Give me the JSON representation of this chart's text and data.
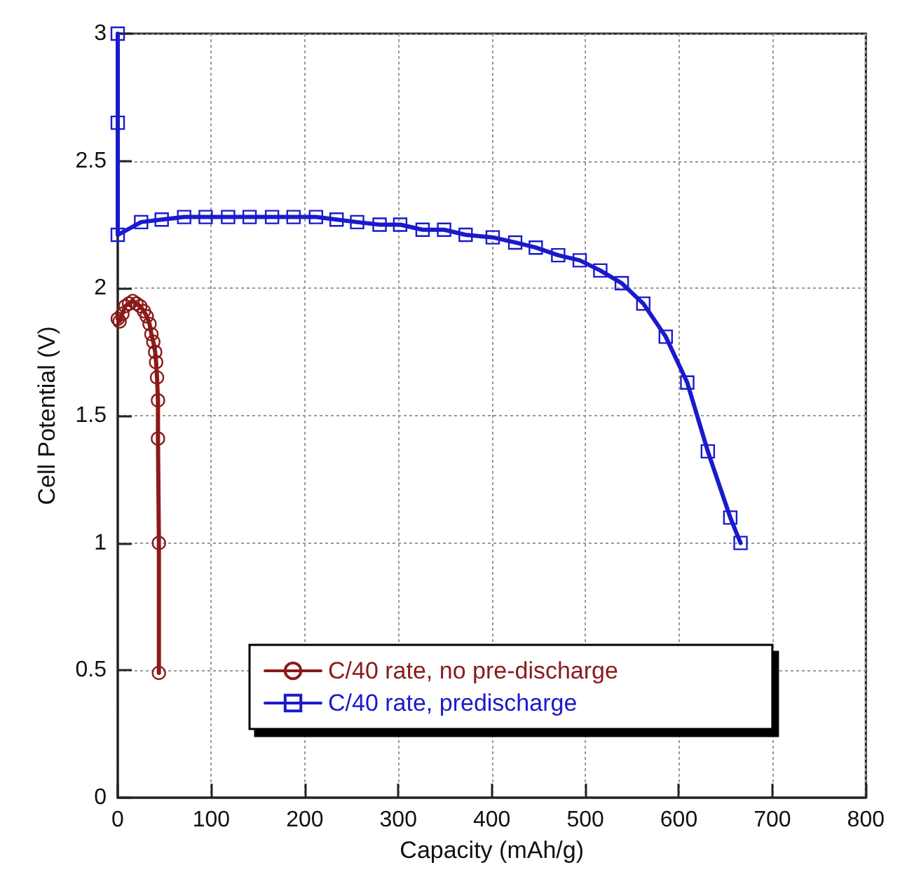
{
  "chart_data": {
    "type": "line",
    "xlabel": "Capacity (mAh/g)",
    "ylabel": "Cell Potential (V)",
    "xlim": [
      0,
      800
    ],
    "xticks": [
      0,
      100,
      200,
      300,
      400,
      500,
      600,
      700,
      800
    ],
    "ylim": [
      0,
      3
    ],
    "yticks": [
      0,
      0.5,
      1,
      1.5,
      2,
      2.5,
      3
    ],
    "grid": true,
    "legend": "bottom",
    "line_style": "solid",
    "series": [
      {
        "name": "C/40 rate, no pre-discharge",
        "color": "#8b1a1a",
        "marker": "circle",
        "x": [
          0,
          2,
          5,
          8,
          12,
          16,
          20,
          24,
          28,
          31,
          34,
          36,
          38,
          40,
          41,
          42,
          43,
          43,
          44,
          44
        ],
        "values": [
          1.88,
          1.87,
          1.9,
          1.93,
          1.94,
          1.95,
          1.94,
          1.93,
          1.91,
          1.89,
          1.86,
          1.82,
          1.79,
          1.75,
          1.71,
          1.65,
          1.56,
          1.41,
          1.0,
          0.49
        ]
      },
      {
        "name": "C/40 rate, predischarge",
        "color": "#1a1acc",
        "marker": "square",
        "x": [
          0,
          0,
          0,
          25,
          47,
          71,
          94,
          118,
          141,
          165,
          188,
          212,
          234,
          256,
          280,
          302,
          326,
          349,
          372,
          401,
          425,
          447,
          471,
          494,
          516,
          539,
          562,
          586,
          609,
          631,
          655,
          666
        ],
        "values": [
          3,
          2.65,
          2.21,
          2.26,
          2.27,
          2.28,
          2.28,
          2.28,
          2.28,
          2.28,
          2.28,
          2.28,
          2.27,
          2.26,
          2.25,
          2.25,
          2.23,
          2.23,
          2.21,
          2.2,
          2.18,
          2.16,
          2.13,
          2.11,
          2.07,
          2.02,
          1.94,
          1.81,
          1.63,
          1.36,
          1.1,
          1.0
        ]
      }
    ]
  }
}
